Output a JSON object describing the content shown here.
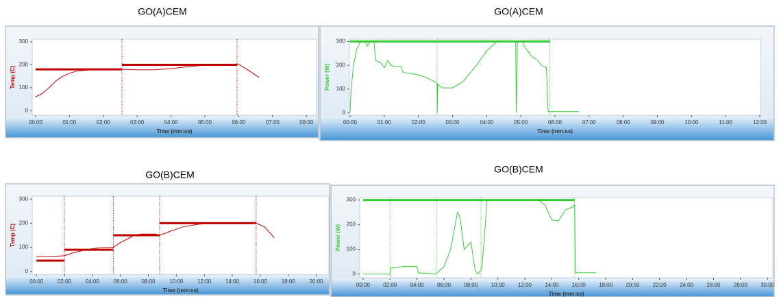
{
  "chart_data": [
    {
      "type": "line",
      "title": "GO(A)CEM",
      "xlabel": "Time (mm:ss)",
      "ylabel": "Temp (C)",
      "ylabel_color": "#c00000",
      "xlim": [
        -0.1,
        8.3
      ],
      "ylim": [
        -20,
        312
      ],
      "xticks": [
        {
          "value": 0,
          "label": "00:00"
        },
        {
          "value": 1,
          "label": "01:00"
        },
        {
          "value": 2,
          "label": "02:00"
        },
        {
          "value": 3,
          "label": "03:00"
        },
        {
          "value": 4,
          "label": "04:00"
        },
        {
          "value": 5,
          "label": "05:00"
        },
        {
          "value": 6,
          "label": "06:00"
        },
        {
          "value": 7,
          "label": "07:00"
        },
        {
          "value": 8,
          "label": "08:00"
        }
      ],
      "yticks": [
        0,
        100,
        200,
        300
      ],
      "vlines": [
        2.55,
        5.95
      ],
      "vline_color": "#c00000",
      "series": [
        {
          "color": "#c00000",
          "line_width": 3,
          "x": [
            0,
            2.55,
            2.55,
            2.55,
            5.95
          ],
          "values": [
            180,
            180,
            null,
            200,
            200
          ]
        },
        {
          "color": "#c00000",
          "line_width": 1,
          "x": [
            0,
            0.2,
            0.4,
            0.6,
            0.8,
            1.0,
            1.2,
            1.6,
            2.0,
            2.55,
            3.0,
            3.5,
            4.0,
            4.5,
            5.0,
            5.5,
            6.0,
            6.3,
            6.6
          ],
          "values": [
            60,
            75,
            100,
            130,
            150,
            163,
            172,
            178,
            180,
            180,
            178,
            178,
            183,
            192,
            198,
            201,
            202,
            175,
            145
          ]
        }
      ]
    },
    {
      "type": "line",
      "title": "GO(A)CEM",
      "xlabel": "Time (mm:ss)",
      "ylabel": "Power (W)",
      "ylabel_color": "#33cc33",
      "xlim": [
        -0.02,
        12.02
      ],
      "ylim": [
        -10,
        310
      ],
      "xticks": [
        {
          "value": 0,
          "label": "00:00"
        },
        {
          "value": 1,
          "label": "01:00"
        },
        {
          "value": 2,
          "label": "02:00"
        },
        {
          "value": 3,
          "label": "03:00"
        },
        {
          "value": 4,
          "label": "04:00"
        },
        {
          "value": 5,
          "label": "05:00"
        },
        {
          "value": 6,
          "label": "06:00"
        },
        {
          "value": 7,
          "label": "07:00"
        },
        {
          "value": 8,
          "label": "08:00"
        },
        {
          "value": 9,
          "label": "09:00"
        },
        {
          "value": 10,
          "label": "10:00"
        },
        {
          "value": 11,
          "label": "11:00"
        },
        {
          "value": 12,
          "label": "12:00"
        }
      ],
      "yticks": [
        0,
        100,
        200,
        300
      ],
      "vlines": [
        2.55,
        5.85
      ],
      "vline_color": "#33cc33",
      "series": [
        {
          "color": "#33cc33",
          "line_width": 3,
          "x": [
            0,
            5.85
          ],
          "values": [
            300,
            300
          ]
        },
        {
          "color": "#33cc33",
          "line_width": 1,
          "x": [
            0,
            0.03,
            0.1,
            0.2,
            0.3,
            0.45,
            0.5,
            0.6,
            0.7,
            0.75,
            0.9,
            1.0,
            1.1,
            1.2,
            1.3,
            1.5,
            1.55,
            2.0,
            2.2,
            2.5,
            2.55,
            2.55,
            2.57,
            2.7,
            3.0,
            3.3,
            3.7,
            4.0,
            4.3,
            4.85,
            4.87,
            4.9,
            5.05,
            5.1,
            5.3,
            5.5,
            5.6,
            5.75,
            5.8,
            6.7
          ],
          "values": [
            0,
            100,
            200,
            270,
            300,
            300,
            280,
            300,
            300,
            220,
            210,
            190,
            220,
            200,
            195,
            195,
            170,
            160,
            150,
            130,
            120,
            0,
            120,
            105,
            105,
            130,
            200,
            260,
            300,
            300,
            0,
            300,
            300,
            280,
            240,
            220,
            200,
            190,
            5,
            5
          ]
        }
      ]
    },
    {
      "type": "line",
      "title": "GO(B)CEM",
      "xlabel": "Time (mm:ss)",
      "ylabel": "Temp (C)",
      "ylabel_color": "#c00000",
      "xlim": [
        -0.3,
        20.9
      ],
      "ylim": [
        -12,
        312
      ],
      "xticks": [
        {
          "value": 0,
          "label": "00:00"
        },
        {
          "value": 2,
          "label": "02:00"
        },
        {
          "value": 4,
          "label": "04:00"
        },
        {
          "value": 6,
          "label": "06:00"
        },
        {
          "value": 8,
          "label": "08:00"
        },
        {
          "value": 10,
          "label": "10:00"
        },
        {
          "value": 12,
          "label": "12:00"
        },
        {
          "value": 14,
          "label": "14:00"
        },
        {
          "value": 16,
          "label": "16:00"
        },
        {
          "value": 18,
          "label": "18:00"
        },
        {
          "value": 20,
          "label": "20:00"
        }
      ],
      "yticks": [
        0,
        100,
        200,
        300
      ],
      "vlines": [
        2.0,
        5.5,
        8.8,
        15.7
      ],
      "vline_color": "#c00000",
      "series": [
        {
          "color": "#c00000",
          "line_width": 3,
          "x": [
            0,
            2.0,
            2.0,
            2.0,
            5.5,
            5.5,
            5.5,
            8.8,
            8.8,
            8.8,
            15.7
          ],
          "values": [
            45,
            45,
            null,
            90,
            90,
            null,
            150,
            150,
            null,
            200,
            200
          ]
        },
        {
          "color": "#c00000",
          "line_width": 1,
          "x": [
            0,
            1,
            2,
            2.5,
            3.5,
            4.5,
            5.5,
            6,
            7,
            7.5,
            8.5,
            8.8,
            9.5,
            10.5,
            11.5,
            12.5,
            15.7,
            16.3,
            17
          ],
          "values": [
            62,
            62,
            65,
            75,
            90,
            98,
            100,
            120,
            150,
            155,
            155,
            150,
            165,
            185,
            195,
            200,
            200,
            185,
            140
          ]
        }
      ]
    },
    {
      "type": "line",
      "title": "GO(B)CEM",
      "xlabel": "Time (mm:ss)",
      "ylabel": "Power (W)",
      "ylabel_color": "#33cc33",
      "xlim": [
        -0.25,
        30.4
      ],
      "ylim": [
        -15,
        310
      ],
      "xticks": [
        {
          "value": 0,
          "label": "00:00"
        },
        {
          "value": 2,
          "label": "02:00"
        },
        {
          "value": 4,
          "label": "04:00"
        },
        {
          "value": 6,
          "label": "06:00"
        },
        {
          "value": 8,
          "label": "08:00"
        },
        {
          "value": 10,
          "label": "10:00"
        },
        {
          "value": 12,
          "label": "12:00"
        },
        {
          "value": 14,
          "label": "14:00"
        },
        {
          "value": 16,
          "label": "16:00"
        },
        {
          "value": 18,
          "label": "18:00"
        },
        {
          "value": 20,
          "label": "20:00"
        },
        {
          "value": 22,
          "label": "22:00"
        },
        {
          "value": 24,
          "label": "24:00"
        },
        {
          "value": 26,
          "label": "26:00"
        },
        {
          "value": 28,
          "label": "28:00"
        },
        {
          "value": 30,
          "label": "30:00"
        }
      ],
      "yticks": [
        0,
        100,
        200,
        300
      ],
      "vlines": [
        2.0,
        5.45,
        8.75,
        15.7
      ],
      "vline_color": "#33cc33",
      "series": [
        {
          "color": "#33cc33",
          "line_width": 3,
          "x": [
            0,
            15.7
          ],
          "values": [
            300,
            300
          ]
        },
        {
          "color": "#33cc33",
          "line_width": 1,
          "x": [
            0,
            2,
            2.05,
            3,
            4,
            4.1,
            5.3,
            5.5,
            6,
            6.5,
            7,
            7.2,
            7.5,
            8,
            8.3,
            8.5,
            8.8,
            9,
            9.2,
            13,
            13.5,
            14,
            14.5,
            15,
            15.5,
            15.7,
            15.75,
            17.3
          ],
          "values": [
            0,
            0,
            25,
            30,
            30,
            5,
            0,
            5,
            30,
            100,
            250,
            230,
            100,
            130,
            20,
            0,
            20,
            150,
            300,
            300,
            280,
            220,
            215,
            260,
            270,
            280,
            5,
            5
          ]
        }
      ]
    }
  ]
}
